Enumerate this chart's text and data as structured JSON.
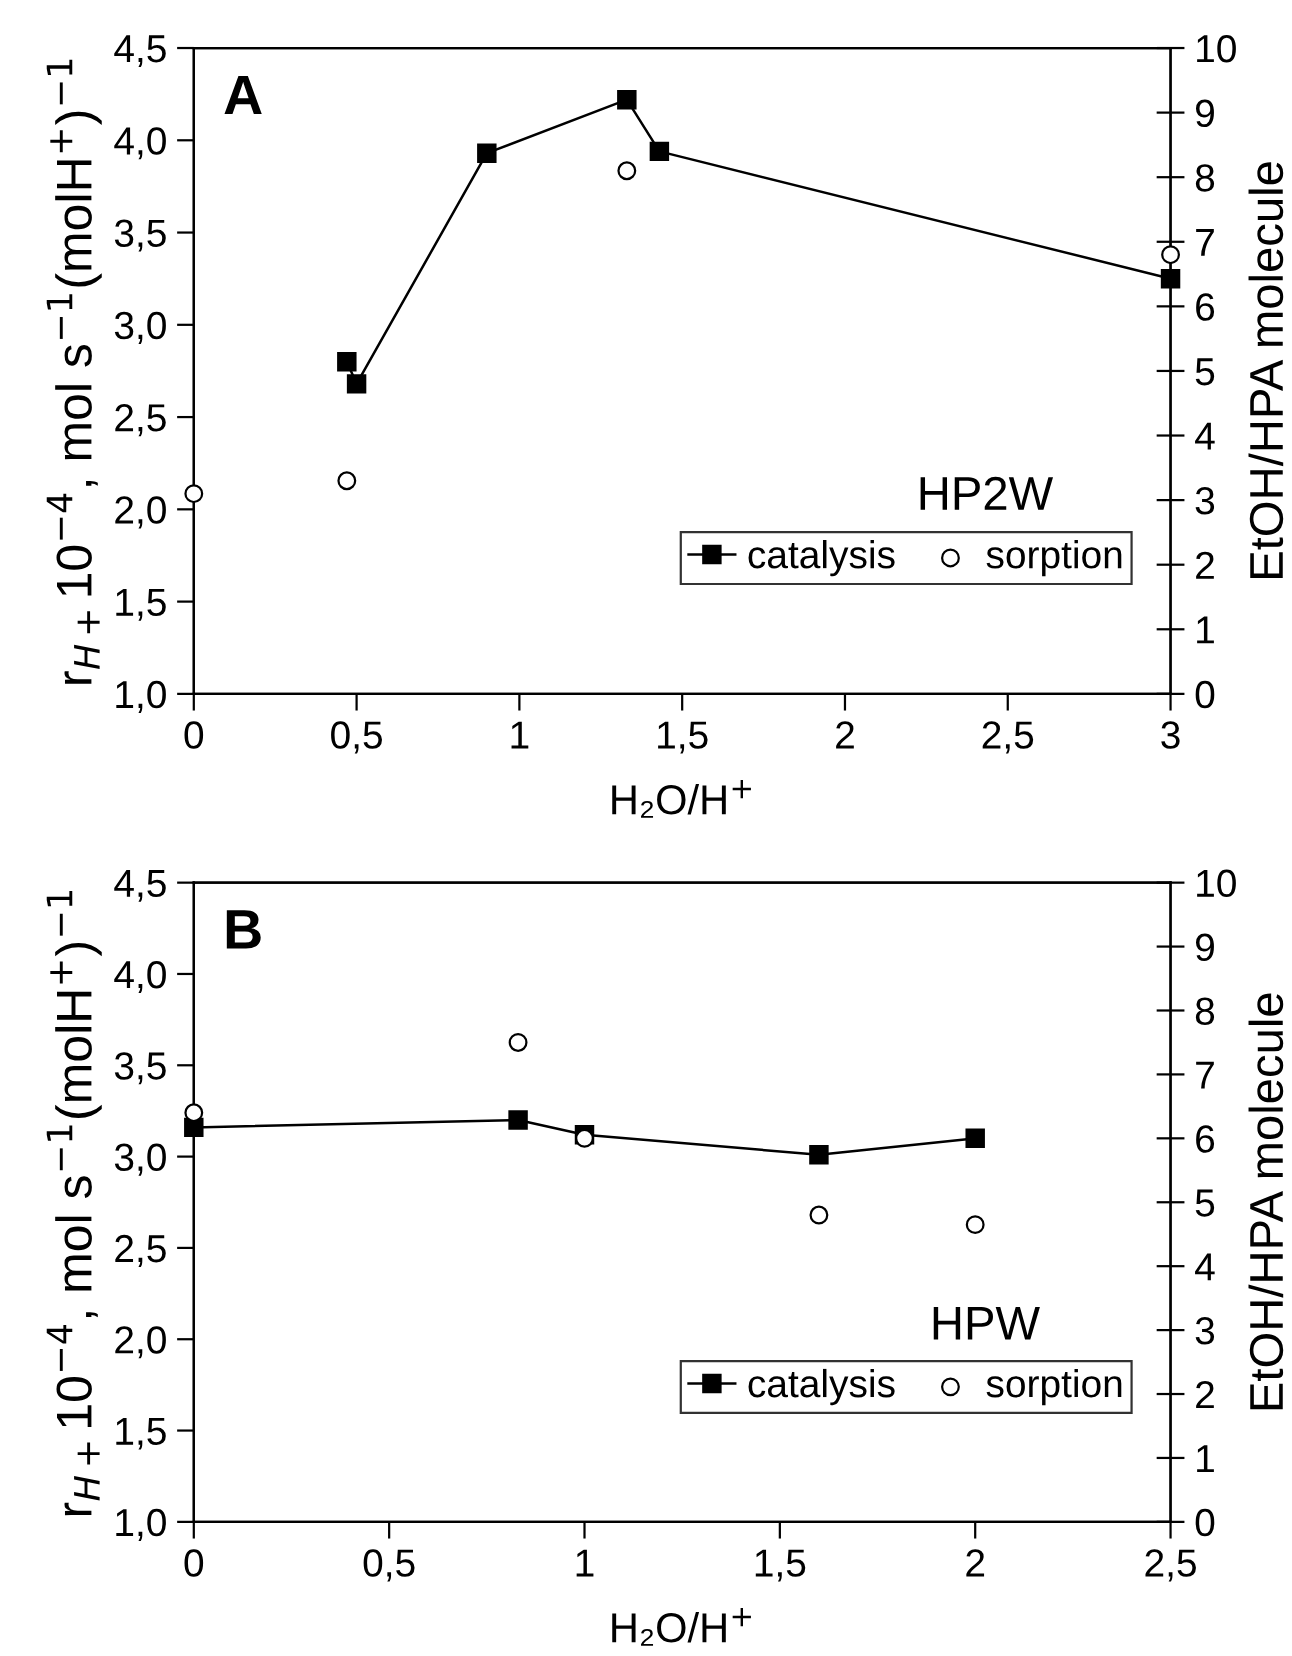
{
  "chart_data": [
    {
      "type": "line",
      "title": null,
      "annotations": [
        "A",
        "HP2W"
      ],
      "xlabel": "H₂O/H$^{+}$",
      "ylabel": "r$_{H+}$10$^{−4}$, mol s$^{−1}$(molH$^{+}$)$^{−1}$",
      "y2label": "EtOH/HPA molecule",
      "xlim": [
        0,
        3
      ],
      "xticks": [
        0,
        {
          "value": 0.5,
          "label": "0,5"
        },
        1,
        {
          "value": 1.5,
          "label": "1,5"
        },
        2,
        {
          "value": 2.5,
          "label": "2,5"
        },
        3
      ],
      "ylim": [
        1,
        4.5
      ],
      "yticks": [
        {
          "value": 1,
          "label": "1,0"
        },
        {
          "value": 1.5,
          "label": "1,5"
        },
        {
          "value": 2,
          "label": "2,0"
        },
        {
          "value": 2.5,
          "label": "2,5"
        },
        {
          "value": 3,
          "label": "3,0"
        },
        {
          "value": 3.5,
          "label": "3,5"
        },
        {
          "value": 4,
          "label": "4,0"
        },
        {
          "value": 4.5,
          "label": "4,5"
        }
      ],
      "y2lim": [
        0,
        10
      ],
      "y2ticks": [
        0,
        1,
        2,
        3,
        4,
        5,
        6,
        7,
        8,
        9,
        10
      ],
      "grid": false,
      "legend": "bottom right",
      "series": [
        {
          "name": "catalysis",
          "color": "#000000",
          "marker": "square",
          "line_style": "solid",
          "x": [
            0.47,
            0.5,
            0.9,
            1.33,
            1.43,
            3
          ],
          "values": [
            2.8,
            2.68,
            3.93,
            4.22,
            3.94,
            3.25
          ]
        },
        {
          "name": "sorption",
          "type": "scatter",
          "color": "#000000",
          "marker": "circle",
          "axis": "y2",
          "x": [
            0,
            0.47,
            1.33,
            3
          ],
          "values": [
            3.1,
            3.3,
            8.1,
            6.8
          ]
        }
      ]
    },
    {
      "type": "line",
      "title": null,
      "annotations": [
        "B",
        "HPW"
      ],
      "xlabel": "H₂O/H$^{+}$",
      "ylabel": "r$_{H+}$10$^{−4}$, mol s$^{−1}$(molH$^{+}$)$^{−1}$",
      "y2label": "EtOH/HPA molecule",
      "xlim": [
        0,
        2.5
      ],
      "xticks": [
        0,
        {
          "value": 0.5,
          "label": "0,5"
        },
        1,
        {
          "value": 1.5,
          "label": "1,5"
        },
        2,
        {
          "value": 2.5,
          "label": "2,5"
        }
      ],
      "ylim": [
        1,
        4.5
      ],
      "yticks": [
        {
          "value": 1,
          "label": "1,0"
        },
        {
          "value": 1.5,
          "label": "1,5"
        },
        {
          "value": 2,
          "label": "2,0"
        },
        {
          "value": 2.5,
          "label": "2,5"
        },
        {
          "value": 3,
          "label": "3,0"
        },
        {
          "value": 3.5,
          "label": "3,5"
        },
        {
          "value": 4,
          "label": "4,0"
        },
        {
          "value": 4.5,
          "label": "4,5"
        }
      ],
      "y2lim": [
        0,
        10
      ],
      "y2ticks": [
        0,
        1,
        2,
        3,
        4,
        5,
        6,
        7,
        8,
        9,
        10
      ],
      "grid": false,
      "legend": "bottom right",
      "series": [
        {
          "name": "catalysis",
          "color": "#000000",
          "marker": "square",
          "line_style": "solid",
          "x": [
            0,
            0.83,
            1.0,
            1.6,
            2.0
          ],
          "values": [
            3.16,
            3.2,
            3.12,
            3.01,
            3.1
          ]
        },
        {
          "name": "sorption",
          "type": "scatter",
          "color": "#000000",
          "marker": "circle",
          "axis": "y2",
          "x": [
            0,
            0.83,
            1.0,
            1.6,
            2.0
          ],
          "values": [
            6.4,
            7.5,
            6.0,
            4.8,
            4.65
          ]
        }
      ]
    }
  ]
}
